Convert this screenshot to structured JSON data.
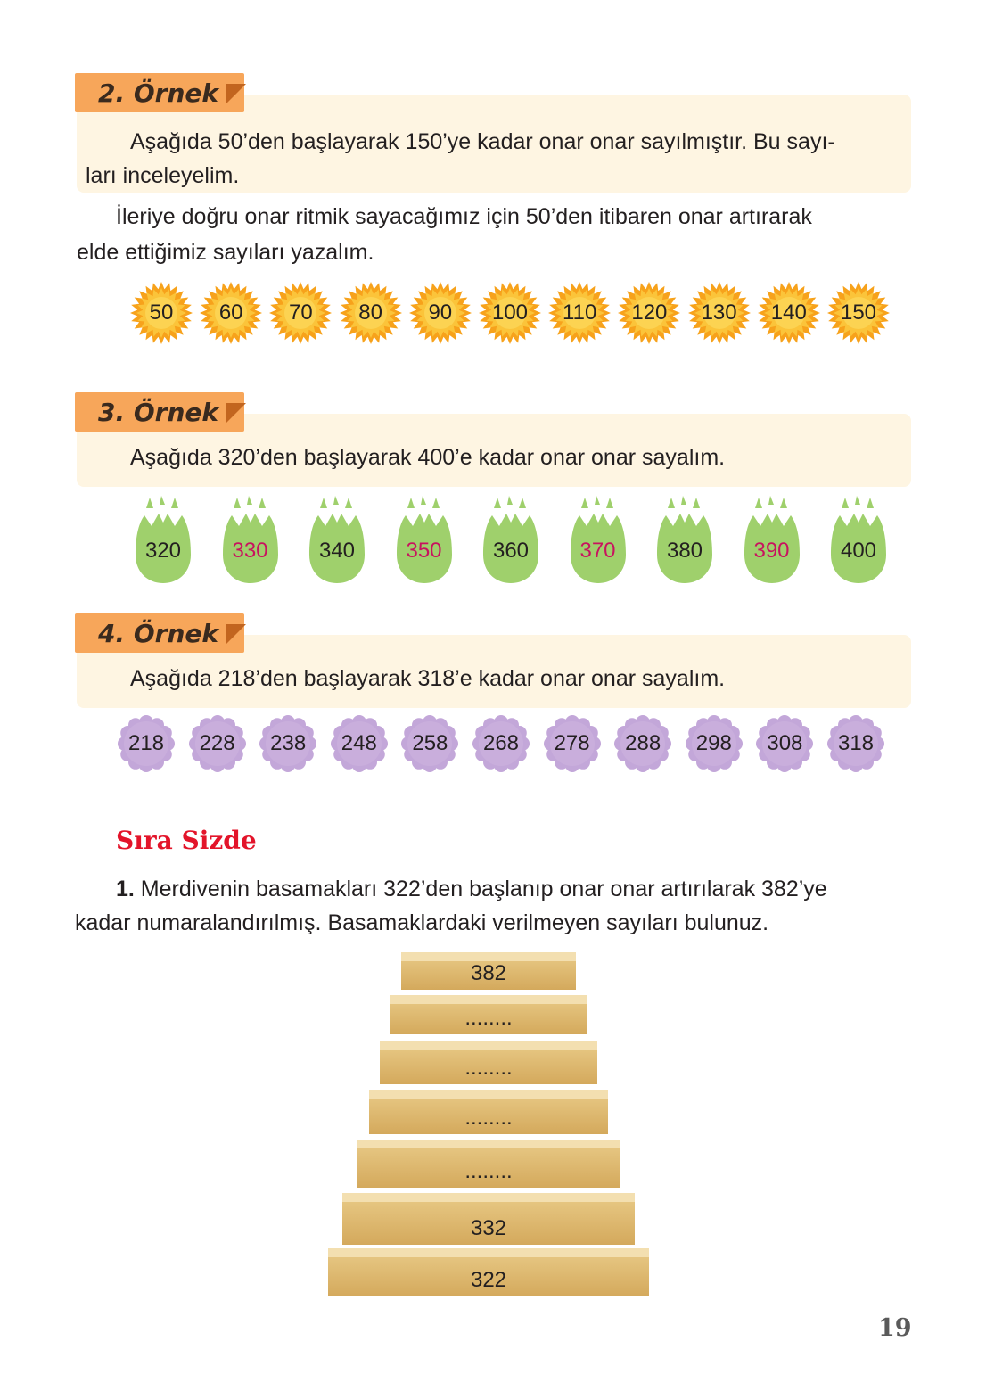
{
  "example2": {
    "label": "2. Örnek",
    "text_line1": "Aşağıda 50’den başlayarak 150’ye kadar onar onar sayılmıştır. Bu sayı-",
    "text_line2": "ları inceleyelim.",
    "para_line1": "İleriye doğru onar ritmik sayacağımız için 50’den itibaren onar artırarak",
    "para_line2": "elde ettiğimiz sayıları yazalım.",
    "flowers": [
      "50",
      "60",
      "70",
      "80",
      "90",
      "100",
      "110",
      "120",
      "130",
      "140",
      "150"
    ]
  },
  "example3": {
    "label": "3. Örnek",
    "text": "Aşağıda 320’den başlayarak 400’e kadar onar onar sayalım.",
    "eggs": [
      {
        "v": "320",
        "c": "#231f20"
      },
      {
        "v": "330",
        "c": "#c8135f"
      },
      {
        "v": "340",
        "c": "#231f20"
      },
      {
        "v": "350",
        "c": "#c8135f"
      },
      {
        "v": "360",
        "c": "#231f20"
      },
      {
        "v": "370",
        "c": "#c8135f"
      },
      {
        "v": "380",
        "c": "#231f20"
      },
      {
        "v": "390",
        "c": "#c8135f"
      },
      {
        "v": "400",
        "c": "#231f20"
      }
    ]
  },
  "example4": {
    "label": "4. Örnek",
    "text": "Aşağıda 218’den başlayarak 318’e kadar onar onar sayalım.",
    "flowers": [
      "218",
      "228",
      "238",
      "248",
      "258",
      "268",
      "278",
      "288",
      "298",
      "308",
      "318"
    ]
  },
  "sira_sizde": {
    "title": "Sıra Sizde",
    "q_number": "1.",
    "q_line1": " Merdivenin basamakları 322’den başlanıp onar onar artırılarak 382’ye",
    "q_line2": "kadar numaralandırılmış. Basamaklardaki verilmeyen sayıları bulunuz.",
    "steps": [
      "382",
      "........",
      "........",
      "........",
      "........",
      "332",
      "322"
    ]
  },
  "page_number": "19",
  "colors": {
    "tag": "#f7a65a",
    "box": "#fef5e2",
    "flower": "#f9b233",
    "egg": "#9fd06c",
    "purple": "#c3a7d9",
    "accent_red": "#e3142a"
  }
}
